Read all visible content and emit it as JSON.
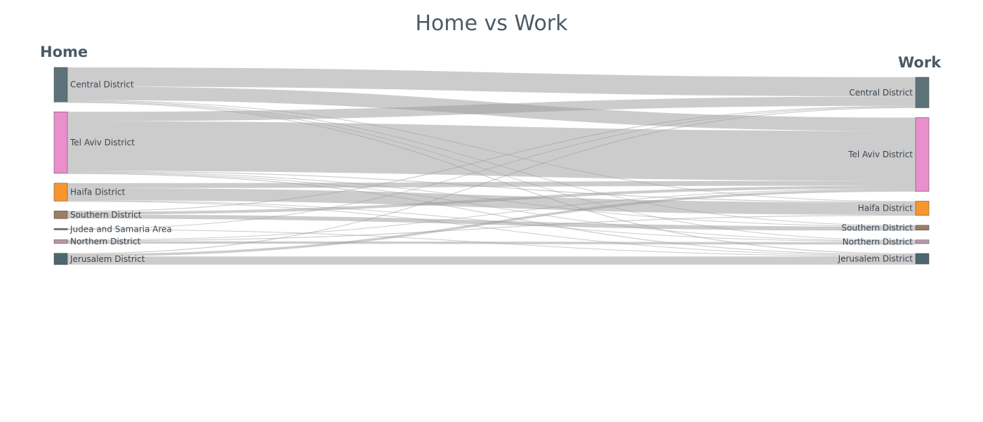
{
  "title": "Home vs Work",
  "left_header": "Home",
  "right_header": "Work",
  "chart_data": {
    "type": "sankey",
    "source_label": "Home",
    "target_label": "Work",
    "nodes": {
      "home": [
        {
          "name": "Central District",
          "color": "#5d7379"
        },
        {
          "name": "Tel Aviv District",
          "color": "#e98fcc"
        },
        {
          "name": "Haifa District",
          "color": "#f7952f"
        },
        {
          "name": "Southern District",
          "color": "#9a7e5e"
        },
        {
          "name": "Judea and Samaria Area",
          "color": "#5d7379"
        },
        {
          "name": "Northern District",
          "color": "#b897a5"
        },
        {
          "name": "Jerusalem District",
          "color": "#4e6670"
        }
      ],
      "work": [
        {
          "name": "Central District",
          "color": "#5d7379"
        },
        {
          "name": "Tel Aviv District",
          "color": "#e98fcc"
        },
        {
          "name": "Haifa District",
          "color": "#f7952f"
        },
        {
          "name": "Southern District",
          "color": "#9a7e5e"
        },
        {
          "name": "Northern District",
          "color": "#b897a5"
        },
        {
          "name": "Jerusalem District",
          "color": "#4e6670"
        }
      ]
    },
    "links": [
      {
        "source": "Central District",
        "target": "Central District",
        "value": 47
      },
      {
        "source": "Central District",
        "target": "Tel Aviv District",
        "value": 33
      },
      {
        "source": "Central District",
        "target": "Haifa District",
        "value": 1
      },
      {
        "source": "Central District",
        "target": "Southern District",
        "value": 1
      },
      {
        "source": "Central District",
        "target": "Northern District",
        "value": 1
      },
      {
        "source": "Central District",
        "target": "Jerusalem District",
        "value": 2
      },
      {
        "source": "Tel Aviv District",
        "target": "Central District",
        "value": 23
      },
      {
        "source": "Tel Aviv District",
        "target": "Tel Aviv District",
        "value": 122
      },
      {
        "source": "Tel Aviv District",
        "target": "Haifa District",
        "value": 2
      },
      {
        "source": "Tel Aviv District",
        "target": "Southern District",
        "value": 1
      },
      {
        "source": "Tel Aviv District",
        "target": "Northern District",
        "value": 1
      },
      {
        "source": "Tel Aviv District",
        "target": "Jerusalem District",
        "value": 2
      },
      {
        "source": "Haifa District",
        "target": "Tel Aviv District",
        "value": 12
      },
      {
        "source": "Haifa District",
        "target": "Haifa District",
        "value": 30
      },
      {
        "source": "Haifa District",
        "target": "Northern District",
        "value": 1
      },
      {
        "source": "Haifa District",
        "target": "Jerusalem District",
        "value": 1
      },
      {
        "source": "Southern District",
        "target": "Central District",
        "value": 2
      },
      {
        "source": "Southern District",
        "target": "Tel Aviv District",
        "value": 7
      },
      {
        "source": "Southern District",
        "target": "Southern District",
        "value": 10
      },
      {
        "source": "Judea and Samaria Area",
        "target": "Central District",
        "value": 1
      },
      {
        "source": "Judea and Samaria Area",
        "target": "Jerusalem District",
        "value": 1
      },
      {
        "source": "Northern District",
        "target": "Tel Aviv District",
        "value": 1
      },
      {
        "source": "Northern District",
        "target": "Haifa District",
        "value": 2
      },
      {
        "source": "Northern District",
        "target": "Northern District",
        "value": 6
      },
      {
        "source": "Jerusalem District",
        "target": "Central District",
        "value": 2
      },
      {
        "source": "Jerusalem District",
        "target": "Tel Aviv District",
        "value": 6
      },
      {
        "source": "Jerusalem District",
        "target": "Jerusalem District",
        "value": 20
      }
    ]
  }
}
